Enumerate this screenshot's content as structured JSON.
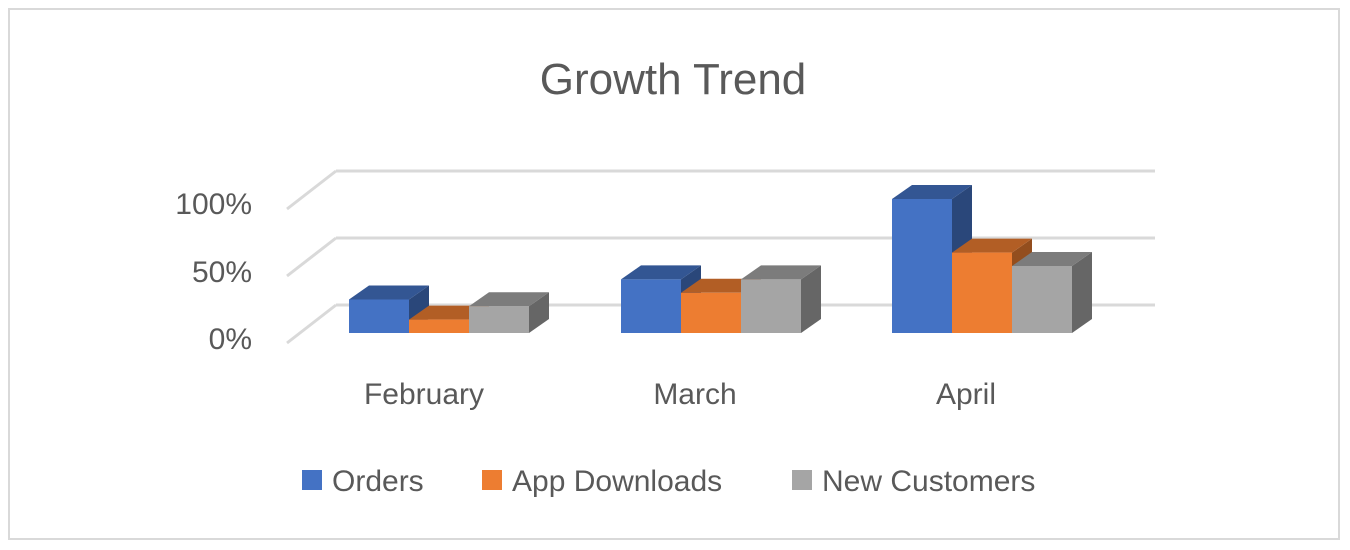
{
  "chart_data": {
    "type": "bar",
    "title": "Growth Trend",
    "xlabel": "",
    "ylabel": "",
    "categories": [
      "February",
      "March",
      "April"
    ],
    "series": [
      {
        "name": "Orders",
        "values": [
          25,
          40,
          100
        ]
      },
      {
        "name": "App Downloads",
        "values": [
          10,
          30,
          60
        ]
      },
      {
        "name": "New Customers",
        "values": [
          20,
          40,
          50
        ]
      }
    ],
    "ylim": [
      0,
      100
    ],
    "yticks": [
      "0%",
      "50%",
      "100%"
    ],
    "grid": true,
    "legend": "bottom",
    "colors": {
      "Orders": "#4472c4",
      "App Downloads": "#ed7d31",
      "New Customers": "#a5a5a5",
      "gridline": "#d9d9d9"
    }
  }
}
